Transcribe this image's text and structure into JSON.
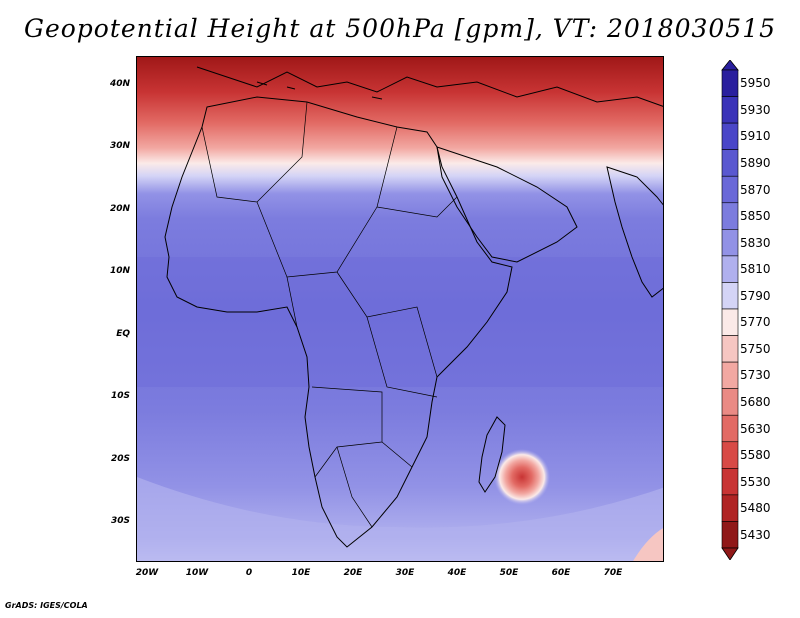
{
  "title": "Geopotential Height at 500hPa [gpm], VT: 2018030515",
  "credit": "GrADS: IGES/COLA",
  "map": {
    "lat_labels": [
      "40N",
      "30N",
      "20N",
      "10N",
      "EQ",
      "10S",
      "20S",
      "30S"
    ],
    "lon_labels": [
      "20W",
      "10W",
      "0",
      "10E",
      "20E",
      "30E",
      "40E",
      "50E",
      "60E",
      "70E"
    ]
  },
  "colorbar": {
    "levels": [
      "5950",
      "5930",
      "5910",
      "5890",
      "5870",
      "5850",
      "5830",
      "5810",
      "5790",
      "5770",
      "5750",
      "5730",
      "5680",
      "5630",
      "5580",
      "5530",
      "5480",
      "5430"
    ],
    "colors": [
      "#2a1f9e",
      "#3a33b8",
      "#4a46c8",
      "#5a58d0",
      "#6a68d8",
      "#7c7cde",
      "#9292e6",
      "#b0b0ee",
      "#d4d4f6",
      "#fbeae8",
      "#f6c6c2",
      "#f2a8a2",
      "#ea8a84",
      "#e26a64",
      "#d84a46",
      "#c83434",
      "#b02424",
      "#901818"
    ]
  }
}
